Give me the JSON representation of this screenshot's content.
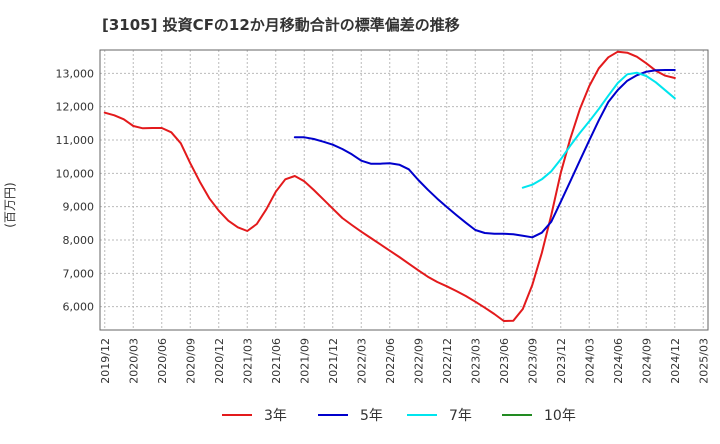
{
  "chart_data": {
    "type": "line",
    "title": "[3105]  投資CFの12か月移動合計の標準偏差の推移",
    "ylabel": "(百万円)",
    "xlabel": "",
    "ylim": [
      5300,
      13700
    ],
    "yticks": [
      6000,
      7000,
      8000,
      9000,
      10000,
      11000,
      12000,
      13000
    ],
    "ytick_labels": [
      "6,000",
      "7,000",
      "8,000",
      "9,000",
      "10,000",
      "11,000",
      "12,000",
      "13,000"
    ],
    "xticks": [
      "2019/12",
      "2020/03",
      "2020/06",
      "2020/09",
      "2020/12",
      "2021/03",
      "2021/06",
      "2021/09",
      "2021/12",
      "2022/03",
      "2022/06",
      "2022/09",
      "2022/12",
      "2023/03",
      "2023/06",
      "2023/09",
      "2023/12",
      "2024/03",
      "2024/06",
      "2024/09",
      "2024/12",
      "2025/03"
    ],
    "grid": true,
    "legend_position": "bottom",
    "series": [
      {
        "name": "3年",
        "color": "#e31a1c",
        "points": [
          [
            "2019/12",
            11820
          ],
          [
            "2020/01",
            11740
          ],
          [
            "2020/02",
            11620
          ],
          [
            "2020/03",
            11420
          ],
          [
            "2020/04",
            11350
          ],
          [
            "2020/05",
            11360
          ],
          [
            "2020/06",
            11360
          ],
          [
            "2020/07",
            11230
          ],
          [
            "2020/08",
            10900
          ],
          [
            "2020/09",
            10300
          ],
          [
            "2020/10",
            9750
          ],
          [
            "2020/11",
            9250
          ],
          [
            "2020/12",
            8880
          ],
          [
            "2021/01",
            8580
          ],
          [
            "2021/02",
            8380
          ],
          [
            "2021/03",
            8270
          ],
          [
            "2021/04",
            8480
          ],
          [
            "2021/05",
            8920
          ],
          [
            "2021/06",
            9450
          ],
          [
            "2021/07",
            9820
          ],
          [
            "2021/08",
            9920
          ],
          [
            "2021/09",
            9760
          ],
          [
            "2021/10",
            9500
          ],
          [
            "2021/11",
            9220
          ],
          [
            "2021/12",
            8940
          ],
          [
            "2022/01",
            8660
          ],
          [
            "2022/02",
            8450
          ],
          [
            "2022/03",
            8250
          ],
          [
            "2022/04",
            8060
          ],
          [
            "2022/05",
            7870
          ],
          [
            "2022/06",
            7680
          ],
          [
            "2022/07",
            7490
          ],
          [
            "2022/08",
            7290
          ],
          [
            "2022/09",
            7090
          ],
          [
            "2022/10",
            6900
          ],
          [
            "2022/11",
            6740
          ],
          [
            "2022/12",
            6610
          ],
          [
            "2023/01",
            6470
          ],
          [
            "2023/02",
            6320
          ],
          [
            "2023/03",
            6150
          ],
          [
            "2023/04",
            5970
          ],
          [
            "2023/05",
            5780
          ],
          [
            "2023/06",
            5570
          ],
          [
            "2023/07",
            5580
          ],
          [
            "2023/08",
            5930
          ],
          [
            "2023/09",
            6650
          ],
          [
            "2023/10",
            7610
          ],
          [
            "2023/11",
            8750
          ],
          [
            "2023/12",
            10020
          ],
          [
            "2024/01",
            11040
          ],
          [
            "2024/02",
            11920
          ],
          [
            "2024/03",
            12620
          ],
          [
            "2024/04",
            13150
          ],
          [
            "2024/05",
            13480
          ],
          [
            "2024/06",
            13650
          ],
          [
            "2024/07",
            13620
          ],
          [
            "2024/08",
            13500
          ],
          [
            "2024/09",
            13300
          ],
          [
            "2024/10",
            13080
          ],
          [
            "2024/11",
            12930
          ],
          [
            "2024/12",
            12860
          ]
        ]
      },
      {
        "name": "5年",
        "color": "#0000cc",
        "points": [
          [
            "2021/08",
            11080
          ],
          [
            "2021/09",
            11080
          ],
          [
            "2021/10",
            11030
          ],
          [
            "2021/11",
            10950
          ],
          [
            "2021/12",
            10860
          ],
          [
            "2022/01",
            10730
          ],
          [
            "2022/02",
            10570
          ],
          [
            "2022/03",
            10380
          ],
          [
            "2022/04",
            10290
          ],
          [
            "2022/05",
            10290
          ],
          [
            "2022/06",
            10300
          ],
          [
            "2022/07",
            10260
          ],
          [
            "2022/08",
            10120
          ],
          [
            "2022/09",
            9800
          ],
          [
            "2022/10",
            9510
          ],
          [
            "2022/11",
            9240
          ],
          [
            "2022/12",
            8990
          ],
          [
            "2023/01",
            8750
          ],
          [
            "2023/02",
            8520
          ],
          [
            "2023/03",
            8300
          ],
          [
            "2023/04",
            8210
          ],
          [
            "2023/05",
            8190
          ],
          [
            "2023/06",
            8190
          ],
          [
            "2023/07",
            8170
          ],
          [
            "2023/08",
            8130
          ],
          [
            "2023/09",
            8080
          ],
          [
            "2023/10",
            8220
          ],
          [
            "2023/11",
            8550
          ],
          [
            "2023/12",
            9150
          ],
          [
            "2024/01",
            9760
          ],
          [
            "2024/02",
            10380
          ],
          [
            "2024/03",
            10990
          ],
          [
            "2024/04",
            11590
          ],
          [
            "2024/05",
            12140
          ],
          [
            "2024/06",
            12500
          ],
          [
            "2024/07",
            12780
          ],
          [
            "2024/08",
            12940
          ],
          [
            "2024/09",
            13050
          ],
          [
            "2024/10",
            13090
          ],
          [
            "2024/11",
            13100
          ],
          [
            "2024/12",
            13100
          ]
        ]
      },
      {
        "name": "7年",
        "color": "#00e5ee",
        "points": [
          [
            "2023/08",
            9570
          ],
          [
            "2023/09",
            9660
          ],
          [
            "2023/10",
            9820
          ],
          [
            "2023/11",
            10060
          ],
          [
            "2023/12",
            10420
          ],
          [
            "2024/01",
            10830
          ],
          [
            "2024/02",
            11210
          ],
          [
            "2024/03",
            11560
          ],
          [
            "2024/04",
            11930
          ],
          [
            "2024/05",
            12330
          ],
          [
            "2024/06",
            12710
          ],
          [
            "2024/07",
            12970
          ],
          [
            "2024/08",
            13020
          ],
          [
            "2024/09",
            12920
          ],
          [
            "2024/10",
            12730
          ],
          [
            "2024/11",
            12490
          ],
          [
            "2024/12",
            12250
          ]
        ]
      },
      {
        "name": "10年",
        "color": "#228b22",
        "points": []
      }
    ]
  }
}
